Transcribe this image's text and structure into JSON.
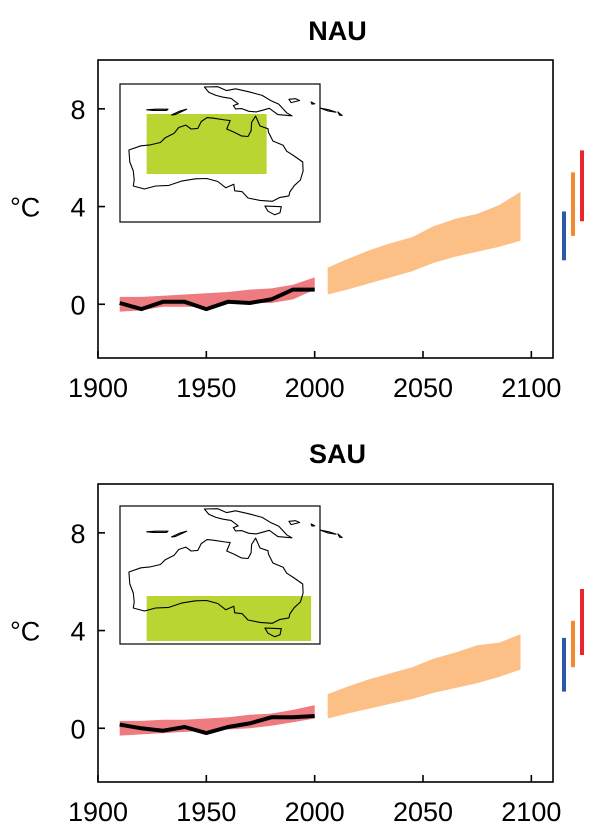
{
  "colors": {
    "observed_line": "#000000",
    "historical_band": "#ee7b7f",
    "projection_band": "#fcbf86",
    "region_box": "#b9d531",
    "scenario_low": "#2d57a8",
    "scenario_mid": "#f38a32",
    "scenario_high": "#e8262b"
  },
  "chart_data": [
    {
      "type": "line",
      "title": "NAU",
      "ylabel": "°C",
      "xlim": [
        1900,
        2110
      ],
      "ylim": [
        -2.2,
        10
      ],
      "x_ticks": [
        1900,
        1950,
        2000,
        2050,
        2100
      ],
      "y_ticks": [
        0,
        4,
        8
      ],
      "inset": {
        "icon": "australia-map",
        "region_lon": [
          118,
          145
        ],
        "region_lat": [
          -30,
          -10
        ]
      },
      "observed": {
        "x": [
          1910,
          1920,
          1930,
          1940,
          1950,
          1960,
          1970,
          1980,
          1990,
          2000
        ],
        "y": [
          0.05,
          -0.2,
          0.1,
          0.1,
          -0.2,
          0.1,
          0.05,
          0.2,
          0.6,
          0.6
        ]
      },
      "historical_band": {
        "x": [
          1910,
          1920,
          1930,
          1940,
          1950,
          1960,
          1970,
          1980,
          1990,
          2000
        ],
        "lower": [
          -0.3,
          -0.25,
          -0.1,
          -0.1,
          -0.1,
          0.05,
          0.05,
          0.05,
          0.2,
          0.6
        ],
        "upper": [
          0.3,
          0.3,
          0.35,
          0.4,
          0.45,
          0.5,
          0.6,
          0.65,
          0.8,
          1.1
        ]
      },
      "projection_band": {
        "x": [
          2006,
          2015,
          2025,
          2035,
          2045,
          2055,
          2065,
          2075,
          2085,
          2095
        ],
        "lower": [
          0.4,
          0.6,
          0.85,
          1.1,
          1.35,
          1.7,
          1.95,
          2.15,
          2.35,
          2.6
        ],
        "upper": [
          1.5,
          1.85,
          2.2,
          2.5,
          2.75,
          3.2,
          3.5,
          3.7,
          4.05,
          4.6
        ]
      },
      "scenario_ranges": [
        {
          "low": 1.8,
          "high": 3.8
        },
        {
          "low": 2.8,
          "high": 5.4
        },
        {
          "low": 3.4,
          "high": 6.3
        }
      ]
    },
    {
      "type": "line",
      "title": "SAU",
      "ylabel": "°C",
      "xlim": [
        1900,
        2110
      ],
      "ylim": [
        -2.2,
        10
      ],
      "x_ticks": [
        1900,
        1950,
        2000,
        2050,
        2100
      ],
      "y_ticks": [
        0,
        4,
        8
      ],
      "inset": {
        "icon": "australia-map",
        "region_lon": [
          118,
          155
        ],
        "region_lat": [
          -45,
          -30
        ]
      },
      "observed": {
        "x": [
          1910,
          1920,
          1930,
          1940,
          1950,
          1960,
          1970,
          1980,
          1990,
          2000
        ],
        "y": [
          0.15,
          0.0,
          -0.1,
          0.05,
          -0.2,
          0.05,
          0.2,
          0.45,
          0.45,
          0.5
        ]
      },
      "historical_band": {
        "x": [
          1910,
          1920,
          1930,
          1940,
          1950,
          1960,
          1970,
          1980,
          1990,
          2000
        ],
        "lower": [
          -0.3,
          -0.25,
          -0.2,
          -0.15,
          -0.1,
          -0.05,
          0.0,
          0.1,
          0.25,
          0.4
        ],
        "upper": [
          0.3,
          0.3,
          0.35,
          0.35,
          0.4,
          0.45,
          0.55,
          0.6,
          0.75,
          0.95
        ]
      },
      "projection_band": {
        "x": [
          2006,
          2015,
          2025,
          2035,
          2045,
          2055,
          2065,
          2075,
          2085,
          2095
        ],
        "lower": [
          0.4,
          0.6,
          0.8,
          1.0,
          1.2,
          1.45,
          1.65,
          1.85,
          2.1,
          2.4
        ],
        "upper": [
          1.4,
          1.7,
          2.0,
          2.25,
          2.5,
          2.85,
          3.1,
          3.4,
          3.5,
          3.85
        ]
      },
      "scenario_ranges": [
        {
          "low": 1.5,
          "high": 3.7
        },
        {
          "low": 2.5,
          "high": 4.4
        },
        {
          "low": 3.0,
          "high": 5.7
        }
      ]
    }
  ]
}
